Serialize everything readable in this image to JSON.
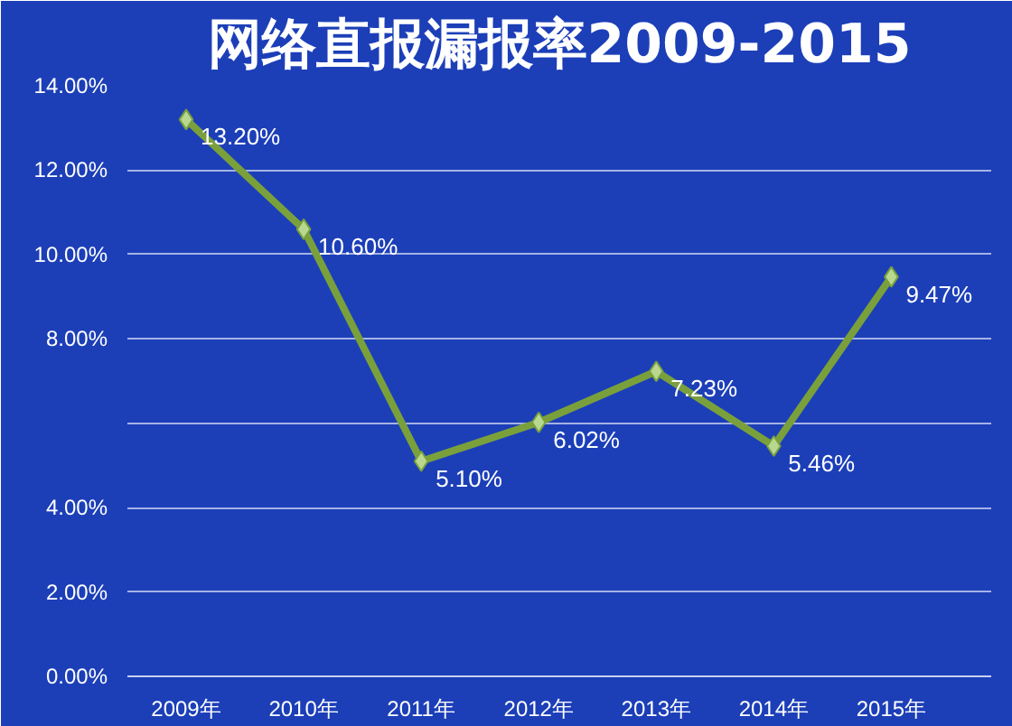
{
  "chart_data": {
    "type": "line",
    "title": "网络直报漏报率2009-2015",
    "categories": [
      "2009年",
      "2010年",
      "2011年",
      "2012年",
      "2013年",
      "2014年",
      "2015年"
    ],
    "series": [
      {
        "color": "#7aa03c",
        "values": [
          13.2,
          10.6,
          5.1,
          6.02,
          7.23,
          5.46,
          9.47
        ],
        "value_labels": [
          "13.20%",
          "10.60%",
          "5.10%",
          "6.02%",
          "7.23%",
          "5.46%",
          "9.47%"
        ]
      }
    ],
    "ylim": [
      0,
      14
    ],
    "yticks": [
      {
        "value": 0,
        "label": "0.00%"
      },
      {
        "value": 2,
        "label": "2.00%"
      },
      {
        "value": 4,
        "label": "4.00%"
      },
      {
        "value": 6,
        "label": null
      },
      {
        "value": 8,
        "label": "8.00%"
      },
      {
        "value": 10,
        "label": "10.00%"
      },
      {
        "value": 12,
        "label": "12.00%"
      },
      {
        "value": 14,
        "label": "14.00%"
      }
    ],
    "grid": "y",
    "marker": "diamond",
    "line_style": "solid"
  }
}
